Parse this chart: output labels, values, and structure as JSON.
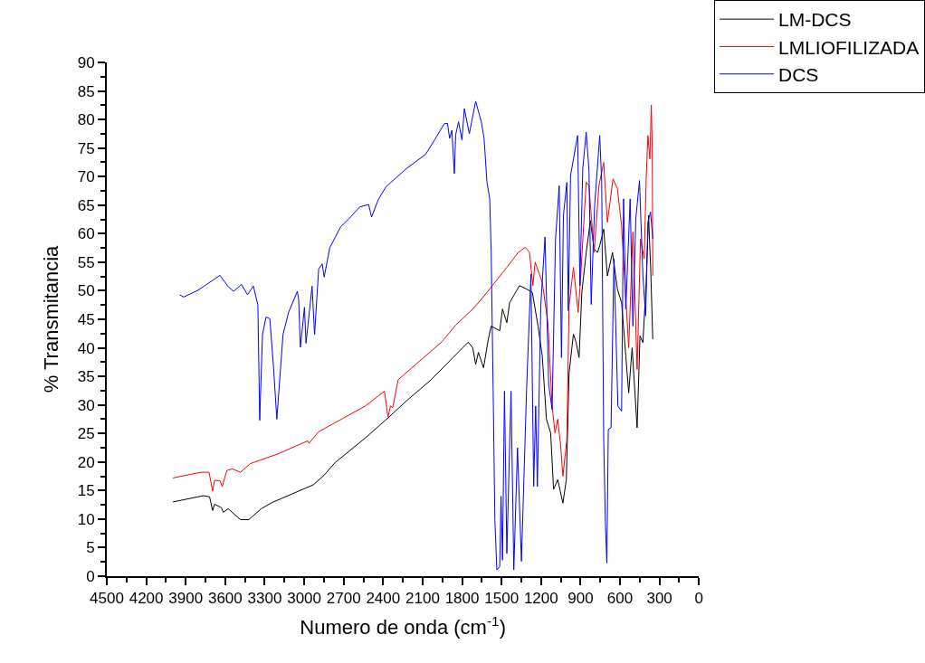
{
  "chart_data": {
    "type": "line",
    "xlabel": "Numero de onda (cm$^{-1}$)",
    "ylabel": "% Transmitancia",
    "xlim": [
      4500,
      0
    ],
    "xticks": [
      4500,
      4200,
      3900,
      3600,
      3300,
      3000,
      2700,
      2400,
      2100,
      1800,
      1500,
      1200,
      900,
      600,
      300,
      0
    ],
    "ylim": [
      0,
      90
    ],
    "yticks": [
      0,
      5,
      10,
      15,
      20,
      25,
      30,
      35,
      40,
      45,
      50,
      55,
      60,
      65,
      70,
      75,
      80,
      85,
      90
    ],
    "grid": false,
    "legend": "top right",
    "marker": "none",
    "line_style": "solid",
    "series": [
      {
        "name": "LM-DCS",
        "color": "#000000",
        "x": [
          3998,
          3765,
          3719,
          3696,
          3681,
          3629,
          3615,
          3577,
          3484,
          3421,
          3327,
          3244,
          2931,
          2848,
          2765,
          2536,
          2369,
          2223,
          2036,
          1869,
          1754,
          1719,
          1697,
          1676,
          1637,
          1601,
          1579,
          1514,
          1493,
          1460,
          1439,
          1364,
          1310,
          1266,
          1223,
          1191,
          1159,
          1127,
          1105,
          1073,
          1034,
          1008,
          987,
          954,
          933,
          911,
          890,
          857,
          825,
          797,
          771,
          754,
          724,
          696,
          657,
          620,
          588,
          556,
          534,
          508,
          470,
          448,
          426,
          401,
          383,
          366,
          351
        ],
        "values": [
          13.0,
          14.1,
          13.9,
          11.5,
          12.6,
          12.0,
          11.2,
          11.8,
          9.9,
          9.9,
          11.8,
          12.9,
          16.0,
          17.7,
          19.9,
          24.2,
          27.6,
          30.7,
          34.4,
          38.3,
          41.0,
          40.0,
          37.1,
          39.2,
          36.5,
          41.5,
          43.8,
          43.0,
          46.8,
          44.4,
          47.9,
          50.9,
          50.3,
          49.7,
          43.8,
          38.6,
          27.5,
          25.1,
          15.2,
          16.9,
          12.8,
          16.9,
          35.6,
          42.4,
          40.9,
          38.3,
          49.7,
          56.7,
          62.3,
          57.3,
          56.7,
          57.9,
          60.8,
          52.6,
          56.7,
          50.3,
          47.9,
          38.6,
          32.1,
          40.0,
          26.0,
          42.1,
          40.9,
          51.5,
          63.2,
          53.2,
          41.5
        ]
      },
      {
        "name": "LMLIOFILIZADA",
        "color": "#ff0000",
        "x": [
          3998,
          3786,
          3723,
          3696,
          3681,
          3640,
          3623,
          3588,
          3546,
          3484,
          3411,
          3202,
          2973,
          2963,
          2890,
          2536,
          2390,
          2363,
          2344,
          2327,
          2286,
          1952,
          1848,
          1719,
          1654,
          1611,
          1460,
          1374,
          1320,
          1288,
          1262,
          1245,
          1191,
          1148,
          1116,
          1094,
          1073,
          1051,
          1034,
          1004,
          987,
          954,
          918,
          900,
          857,
          836,
          797,
          760,
          724,
          696,
          653,
          620,
          588,
          534,
          502,
          470,
          444,
          416,
          401,
          388,
          373,
          362,
          355,
          351
        ],
        "values": [
          17.2,
          18.2,
          18.2,
          14.9,
          16.8,
          16.7,
          15.7,
          18.5,
          18.8,
          18.2,
          19.7,
          21.4,
          23.7,
          23.3,
          25.3,
          29.8,
          32.4,
          27.9,
          29.8,
          29.5,
          34.4,
          41.1,
          44.0,
          46.8,
          48.5,
          49.7,
          54.1,
          56.7,
          57.6,
          56.7,
          50.9,
          55.0,
          51.5,
          44.4,
          29.8,
          25.1,
          27.5,
          22.8,
          17.5,
          23.9,
          47.4,
          54.1,
          46.2,
          52.0,
          69.0,
          68.4,
          56.7,
          68.4,
          72.5,
          62.0,
          69.6,
          67.9,
          61.4,
          40.0,
          60.3,
          36.2,
          59.1,
          55.6,
          69.6,
          77.2,
          73.1,
          82.5,
          74.9,
          52.6
        ]
      },
      {
        "name": "DCS",
        "color": "#0000ff",
        "x": [
          3948,
          3915,
          3806,
          3640,
          3577,
          3536,
          3477,
          3431,
          3386,
          3352,
          3338,
          3317,
          3290,
          3261,
          3233,
          3208,
          3161,
          3119,
          3052,
          3042,
          3029,
          3019,
          2998,
          2986,
          2940,
          2921,
          2890,
          2863,
          2848,
          2806,
          2723,
          2660,
          2577,
          2510,
          2488,
          2436,
          2379,
          2223,
          2077,
          2015,
          1934,
          1911,
          1895,
          1878,
          1859,
          1849,
          1827,
          1801,
          1783,
          1745,
          1697,
          1654,
          1633,
          1611,
          1590,
          1579,
          1564,
          1551,
          1536,
          1514,
          1504,
          1493,
          1478,
          1460,
          1428,
          1407,
          1379,
          1349,
          1310,
          1277,
          1256,
          1241,
          1228,
          1202,
          1170,
          1142,
          1116,
          1090,
          1062,
          1045,
          1030,
          1004,
          993,
          976,
          922,
          905,
          883,
          857,
          836,
          819,
          793,
          754,
          739,
          724,
          711,
          700,
          689,
          668,
          646,
          616,
          588,
          573,
          556,
          523,
          502,
          480,
          452,
          426,
          405,
          388,
          368,
          351
        ],
        "values": [
          49.3,
          48.9,
          50.1,
          52.7,
          50.7,
          49.9,
          51.1,
          49.3,
          50.8,
          47.5,
          27.3,
          42.3,
          45.4,
          45.1,
          36.6,
          27.5,
          42.3,
          46.2,
          49.9,
          48.5,
          40.1,
          42.3,
          47.1,
          40.8,
          50.8,
          42.3,
          53.8,
          54.7,
          52.4,
          57.5,
          61.2,
          62.6,
          64.7,
          65.1,
          62.9,
          66.0,
          68.2,
          71.4,
          73.9,
          76.2,
          79.3,
          79.3,
          76.7,
          78.1,
          70.5,
          77.3,
          79.6,
          76.4,
          81.9,
          77.5,
          83.2,
          79.6,
          76.7,
          69.0,
          66.1,
          56.7,
          32.7,
          9.9,
          1.1,
          1.7,
          14.0,
          2.8,
          32.4,
          4.0,
          32.4,
          1.1,
          22.5,
          2.6,
          32.7,
          52.9,
          15.7,
          29.8,
          15.7,
          47.4,
          59.4,
          33.6,
          29.2,
          59.1,
          68.4,
          38.3,
          63.2,
          69.0,
          46.5,
          70.2,
          77.2,
          50.9,
          71.4,
          77.8,
          71.1,
          47.6,
          64.9,
          77.2,
          69.0,
          23.9,
          9.3,
          2.3,
          25.7,
          26.0,
          55.6,
          29.8,
          28.9,
          66.1,
          46.8,
          66.1,
          43.8,
          62.6,
          69.3,
          52.6,
          45.6,
          62.0,
          63.8,
          59.1
        ]
      }
    ]
  }
}
